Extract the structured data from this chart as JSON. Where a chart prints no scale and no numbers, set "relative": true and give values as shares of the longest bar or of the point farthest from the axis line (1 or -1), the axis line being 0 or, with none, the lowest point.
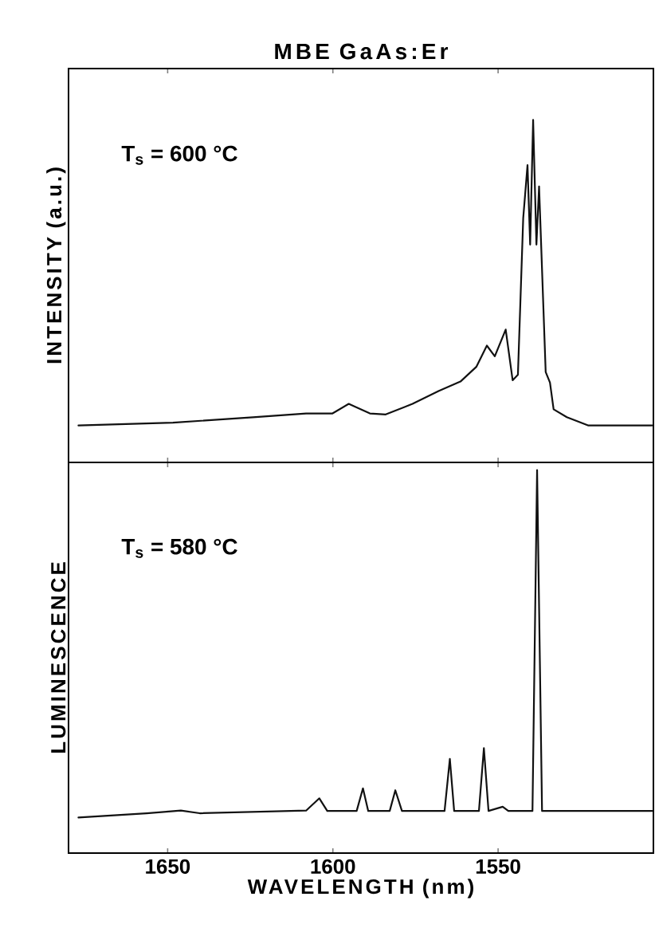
{
  "chart_data": [
    {
      "type": "line",
      "title": "MBE GaAs:Er",
      "ylabel": "INTENSITY (a.u.)",
      "relative": true,
      "tick_labels": false,
      "xlim": [
        1680,
        1503
      ],
      "xticks": [
        1650,
        1600,
        1550
      ],
      "annotations": [
        "T$_{s}$ = 600 °C"
      ],
      "color": "#111111",
      "x": [
        1677,
        1648.4,
        1624.2,
        1608.1,
        1600.1,
        1595.2,
        1588.8,
        1584.0,
        1575.9,
        1567.9,
        1561.4,
        1556.6,
        1553.4,
        1551.0,
        1547.7,
        1545.6,
        1544.0,
        1542.4,
        1541.1,
        1540.3,
        1539.4,
        1538.4,
        1537.6,
        1535.6,
        1534.3,
        1533.2,
        1529.2,
        1522.8,
        1503.4
      ],
      "values": [
        0.108,
        0.116,
        0.132,
        0.143,
        0.143,
        0.171,
        0.143,
        0.14,
        0.171,
        0.209,
        0.236,
        0.279,
        0.341,
        0.31,
        0.388,
        0.24,
        0.256,
        0.713,
        0.868,
        0.636,
        1.0,
        0.636,
        0.806,
        0.264,
        0.233,
        0.155,
        0.132,
        0.108,
        0.108
      ]
    },
    {
      "type": "line",
      "xlabel": "WAVELENGTH (nm)",
      "ylabel": "LUMINESCENCE",
      "relative": true,
      "tick_labels": "x",
      "xlim": [
        1680,
        1503
      ],
      "xticks": [
        1650,
        1600,
        1550
      ],
      "annotations": [
        "T$_{s}$ = 580 °C"
      ],
      "color": "#111111",
      "x": [
        1677,
        1656.4,
        1646.0,
        1640.3,
        1608.1,
        1604.1,
        1601.7,
        1592.8,
        1590.9,
        1589.3,
        1582.8,
        1581.1,
        1579.1,
        1566.2,
        1564.6,
        1563.3,
        1555.8,
        1554.3,
        1552.9,
        1548.6,
        1546.9,
        1539.6,
        1538.2,
        1536.7,
        1521.9,
        1503.4
      ],
      "values": [
        0.093,
        0.104,
        0.111,
        0.104,
        0.111,
        0.143,
        0.11,
        0.11,
        0.169,
        0.11,
        0.11,
        0.164,
        0.11,
        0.11,
        0.246,
        0.11,
        0.11,
        0.274,
        0.11,
        0.121,
        0.11,
        0.11,
        1.0,
        0.11,
        0.11,
        0.11
      ]
    }
  ]
}
